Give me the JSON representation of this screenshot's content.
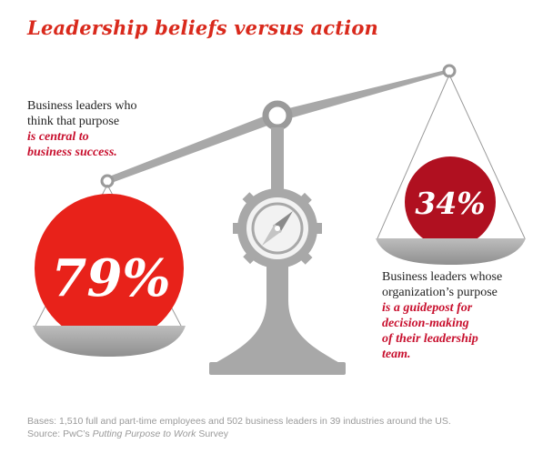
{
  "title": "Leadership beliefs versus action",
  "left": {
    "value": "79%",
    "label_plain": [
      "Business leaders who",
      "think that purpose"
    ],
    "label_emph": [
      "is central to",
      "business success."
    ]
  },
  "right": {
    "value": "34%",
    "label_plain": [
      "Business leaders whose",
      "organization’s purpose"
    ],
    "label_emph": [
      "is a guidepost for",
      "decision-making",
      "of their leadership",
      "team."
    ]
  },
  "footer": {
    "bases": "Bases: 1,510 full and part-time employees and 502 business leaders in 39 industries around the US.",
    "source_prefix": "Source: PwC’s ",
    "source_title": "Putting Purpose to Work",
    "source_suffix": " Survey"
  },
  "colors": {
    "accent": "#d9291c",
    "dark_red": "#b01020",
    "gray": "#a8a8a8",
    "dark_gray": "#8a8a8a"
  }
}
